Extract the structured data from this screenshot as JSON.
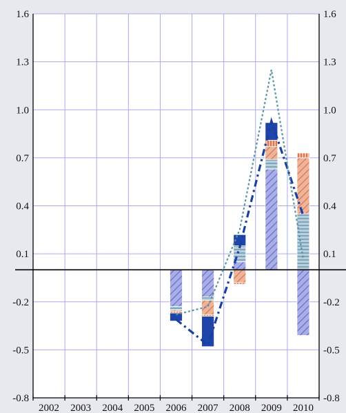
{
  "chart_data": {
    "type": "bar",
    "stacked": true,
    "categories": [
      "2002",
      "2003",
      "2004",
      "2005",
      "2006",
      "2007",
      "2008",
      "2009",
      "2010"
    ],
    "ylim": [
      -0.8,
      1.6
    ],
    "yticks": [
      "-0.8",
      "-0.5",
      "-0.2",
      "0.1",
      "0.4",
      "0.7",
      "1.0",
      "1.3",
      "1.6"
    ],
    "ytick_values": [
      -0.8,
      -0.5,
      -0.2,
      0.1,
      0.4,
      0.7,
      1.0,
      1.3,
      1.6
    ],
    "grid": true,
    "series": [
      {
        "kind": "bar",
        "pattern": "diag-blue",
        "color": "#8a90d4",
        "values": [
          null,
          null,
          null,
          null,
          -0.23,
          -0.17,
          0.05,
          0.63,
          -0.41
        ]
      },
      {
        "kind": "bar",
        "pattern": "horiz-blue",
        "color": "#9ab8c8",
        "values": [
          null,
          null,
          null,
          null,
          -0.02,
          -0.02,
          0.1,
          0.06,
          0.35
        ]
      },
      {
        "kind": "bar",
        "pattern": "diag-orange",
        "color": "#e39a7a",
        "values": [
          null,
          null,
          null,
          null,
          -0.01,
          -0.09,
          -0.08,
          0.08,
          0.35
        ]
      },
      {
        "kind": "bar",
        "pattern": "vert-orange",
        "color": "#e8926f",
        "values": [
          null,
          null,
          null,
          null,
          -0.01,
          -0.01,
          -0.01,
          0.04,
          0.03
        ]
      },
      {
        "kind": "bar",
        "pattern": "solid-navy",
        "color": "#1f45a8",
        "values": [
          null,
          null,
          null,
          null,
          -0.05,
          -0.19,
          0.07,
          0.11,
          0.0
        ]
      },
      {
        "kind": "line",
        "style": "dashdot",
        "color": "#1a3fa3",
        "values": [
          null,
          null,
          null,
          null,
          -0.31,
          -0.47,
          0.14,
          0.93,
          0.34
        ]
      },
      {
        "kind": "line",
        "style": "dotted",
        "color": "#5a93a3",
        "values": [
          null,
          null,
          null,
          null,
          -0.28,
          -0.23,
          0.25,
          1.25,
          0.07
        ]
      }
    ]
  }
}
